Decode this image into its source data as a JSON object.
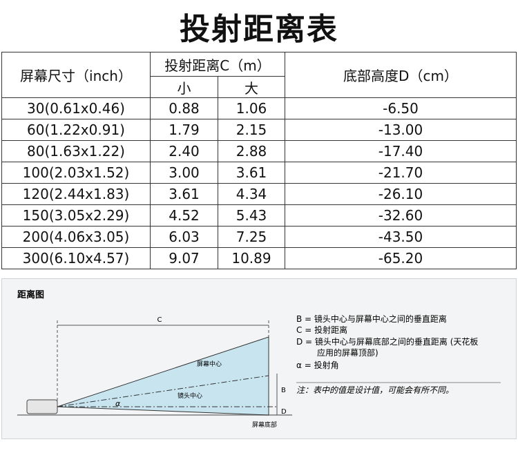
{
  "header": {
    "title": "投射距离表"
  },
  "table": {
    "header": {
      "size": "屏幕尺寸（inch）",
      "distance": "投射距离C（m）",
      "min": "小",
      "max": "大",
      "height": "底部高度D（cm）"
    },
    "rows": [
      [
        "30(0.61x0.46)",
        "0.88",
        "1.06",
        "-6.50"
      ],
      [
        "60(1.22x0.91)",
        "1.79",
        "2.15",
        "-13.00"
      ],
      [
        "80(1.63x1.22)",
        "2.40",
        "2.88",
        "-17.40"
      ],
      [
        "100(2.03x1.52)",
        "3.00",
        "3.61",
        "-21.70"
      ],
      [
        "120(2.44x1.83)",
        "3.61",
        "4.34",
        "-26.10"
      ],
      [
        "150(3.05x2.29)",
        "4.52",
        "5.43",
        "-32.60"
      ],
      [
        "200(4.06x3.05)",
        "6.03",
        "7.25",
        "-43.50"
      ],
      [
        "300(6.10x4.57)",
        "9.07",
        "10.89",
        "-65.20"
      ]
    ]
  },
  "diagram": {
    "title": "距离图",
    "c": "C",
    "screen_center": "屏幕中心",
    "lens_center": "镜头中心",
    "alpha": "α",
    "b": "B",
    "d": "D",
    "screen_bottom": "屏幕底部",
    "legend": [
      "B = 镜头中心与屏幕中心之间的垂直距离",
      "C = 投射距离",
      "D = 镜头中心与屏幕底部之间的垂直距离 (天花板",
      "应用的屏幕顶部)",
      "α = 投射角"
    ],
    "note": "注：表中的值是设计值，可能会有所不同。"
  }
}
